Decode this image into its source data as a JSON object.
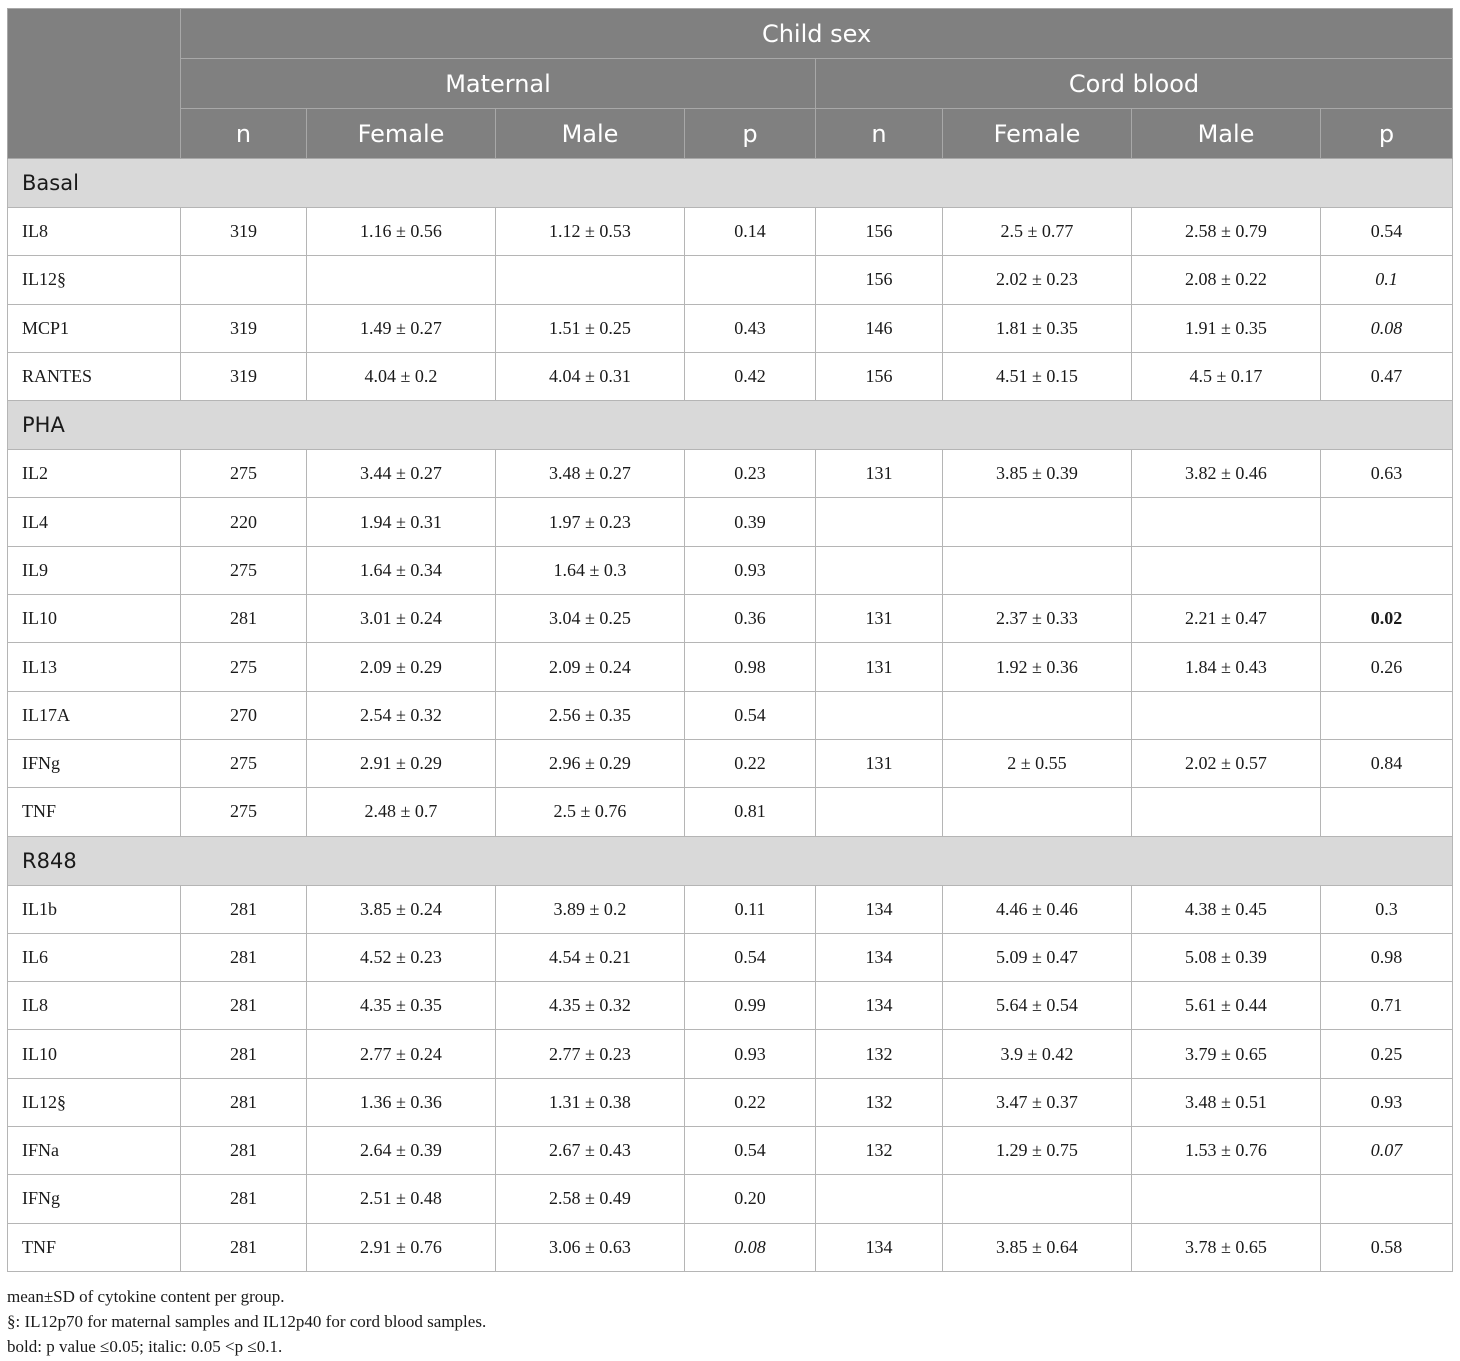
{
  "header": {
    "top": "Child sex",
    "groups": [
      "Maternal",
      "Cord blood"
    ],
    "cols": [
      "n",
      "Female",
      "Male",
      "p",
      "n",
      "Female",
      "Male",
      "p"
    ]
  },
  "sections": [
    {
      "title": "Basal",
      "rows": [
        {
          "label": "IL8",
          "cells": [
            "319",
            "1.16 ± 0.56",
            "1.12 ± 0.53",
            "0.14",
            "156",
            "2.5 ± 0.77",
            "2.58 ± 0.79",
            "0.54"
          ],
          "style": [
            "",
            "",
            "",
            "",
            "",
            "",
            "",
            ""
          ]
        },
        {
          "label": "IL12§",
          "cells": [
            "",
            "",
            "",
            "",
            "156",
            "2.02 ± 0.23",
            "2.08 ± 0.22",
            "0.1"
          ],
          "style": [
            "",
            "",
            "",
            "",
            "",
            "",
            "",
            "i"
          ]
        },
        {
          "label": "MCP1",
          "cells": [
            "319",
            "1.49 ± 0.27",
            "1.51 ± 0.25",
            "0.43",
            "146",
            "1.81 ± 0.35",
            "1.91 ± 0.35",
            "0.08"
          ],
          "style": [
            "",
            "",
            "",
            "",
            "",
            "",
            "",
            "i"
          ]
        },
        {
          "label": "RANTES",
          "cells": [
            "319",
            "4.04 ± 0.2",
            "4.04 ± 0.31",
            "0.42",
            "156",
            "4.51 ± 0.15",
            "4.5 ± 0.17",
            "0.47"
          ],
          "style": [
            "",
            "",
            "",
            "",
            "",
            "",
            "",
            ""
          ]
        }
      ]
    },
    {
      "title": "PHA",
      "rows": [
        {
          "label": "IL2",
          "cells": [
            "275",
            "3.44 ± 0.27",
            "3.48 ± 0.27",
            "0.23",
            "131",
            "3.85 ± 0.39",
            "3.82 ± 0.46",
            "0.63"
          ],
          "style": [
            "",
            "",
            "",
            "",
            "",
            "",
            "",
            ""
          ]
        },
        {
          "label": "IL4",
          "cells": [
            "220",
            "1.94 ± 0.31",
            "1.97 ± 0.23",
            "0.39",
            "",
            "",
            "",
            ""
          ],
          "style": [
            "",
            "",
            "",
            "",
            "",
            "",
            "",
            ""
          ]
        },
        {
          "label": "IL9",
          "cells": [
            "275",
            "1.64 ± 0.34",
            "1.64 ± 0.3",
            "0.93",
            "",
            "",
            "",
            ""
          ],
          "style": [
            "",
            "",
            "",
            "",
            "",
            "",
            "",
            ""
          ]
        },
        {
          "label": "IL10",
          "cells": [
            "281",
            "3.01 ± 0.24",
            "3.04 ± 0.25",
            "0.36",
            "131",
            "2.37 ± 0.33",
            "2.21 ± 0.47",
            "0.02"
          ],
          "style": [
            "",
            "",
            "",
            "",
            "",
            "",
            "",
            "b"
          ]
        },
        {
          "label": "IL13",
          "cells": [
            "275",
            "2.09 ± 0.29",
            "2.09 ± 0.24",
            "0.98",
            "131",
            "1.92 ± 0.36",
            "1.84 ± 0.43",
            "0.26"
          ],
          "style": [
            "",
            "",
            "",
            "",
            "",
            "",
            "",
            ""
          ]
        },
        {
          "label": "IL17A",
          "cells": [
            "270",
            "2.54 ± 0.32",
            "2.56 ± 0.35",
            "0.54",
            "",
            "",
            "",
            ""
          ],
          "style": [
            "",
            "",
            "",
            "",
            "",
            "",
            "",
            ""
          ]
        },
        {
          "label": "IFNg",
          "cells": [
            "275",
            "2.91 ± 0.29",
            "2.96 ± 0.29",
            "0.22",
            "131",
            "2 ± 0.55",
            "2.02 ± 0.57",
            "0.84"
          ],
          "style": [
            "",
            "",
            "",
            "",
            "",
            "",
            "",
            ""
          ]
        },
        {
          "label": "TNF",
          "cells": [
            "275",
            "2.48 ± 0.7",
            "2.5 ± 0.76",
            "0.81",
            "",
            "",
            "",
            ""
          ],
          "style": [
            "",
            "",
            "",
            "",
            "",
            "",
            "",
            ""
          ]
        }
      ]
    },
    {
      "title": "R848",
      "rows": [
        {
          "label": "IL1b",
          "cells": [
            "281",
            "3.85 ± 0.24",
            "3.89 ± 0.2",
            "0.11",
            "134",
            "4.46 ± 0.46",
            "4.38 ± 0.45",
            "0.3"
          ],
          "style": [
            "",
            "",
            "",
            "",
            "",
            "",
            "",
            ""
          ]
        },
        {
          "label": "IL6",
          "cells": [
            "281",
            "4.52 ± 0.23",
            "4.54 ± 0.21",
            "0.54",
            "134",
            "5.09 ± 0.47",
            "5.08 ± 0.39",
            "0.98"
          ],
          "style": [
            "",
            "",
            "",
            "",
            "",
            "",
            "",
            ""
          ]
        },
        {
          "label": "IL8",
          "cells": [
            "281",
            "4.35 ± 0.35",
            "4.35 ± 0.32",
            "0.99",
            "134",
            "5.64 ± 0.54",
            "5.61 ± 0.44",
            "0.71"
          ],
          "style": [
            "",
            "",
            "",
            "",
            "",
            "",
            "",
            ""
          ]
        },
        {
          "label": "IL10",
          "cells": [
            "281",
            "2.77 ± 0.24",
            "2.77 ± 0.23",
            "0.93",
            "132",
            "3.9 ± 0.42",
            "3.79 ± 0.65",
            "0.25"
          ],
          "style": [
            "",
            "",
            "",
            "",
            "",
            "",
            "",
            ""
          ]
        },
        {
          "label": "IL12§",
          "cells": [
            "281",
            "1.36 ± 0.36",
            "1.31 ± 0.38",
            "0.22",
            "132",
            "3.47 ± 0.37",
            "3.48 ± 0.51",
            "0.93"
          ],
          "style": [
            "",
            "",
            "",
            "",
            "",
            "",
            "",
            ""
          ]
        },
        {
          "label": "IFNa",
          "cells": [
            "281",
            "2.64 ± 0.39",
            "2.67 ± 0.43",
            "0.54",
            "132",
            "1.29 ± 0.75",
            "1.53 ± 0.76",
            "0.07"
          ],
          "style": [
            "",
            "",
            "",
            "",
            "",
            "",
            "",
            "i"
          ]
        },
        {
          "label": "IFNg",
          "cells": [
            "281",
            "2.51 ± 0.48",
            "2.58 ± 0.49",
            "0.20",
            "",
            "",
            "",
            ""
          ],
          "style": [
            "",
            "",
            "",
            "",
            "",
            "",
            "",
            ""
          ]
        },
        {
          "label": "TNF",
          "cells": [
            "281",
            "2.91 ± 0.76",
            "3.06 ± 0.63",
            "0.08",
            "134",
            "3.85 ± 0.64",
            "3.78 ± 0.65",
            "0.58"
          ],
          "style": [
            "",
            "",
            "",
            "i",
            "",
            "",
            "",
            ""
          ]
        }
      ]
    }
  ],
  "notes": [
    "mean±SD of cytokine content per group.",
    "§: IL12p70 for maternal samples and IL12p40 for cord blood samples.",
    "bold: p value ≤0.05; italic: 0.05 <p ≤0.1."
  ]
}
